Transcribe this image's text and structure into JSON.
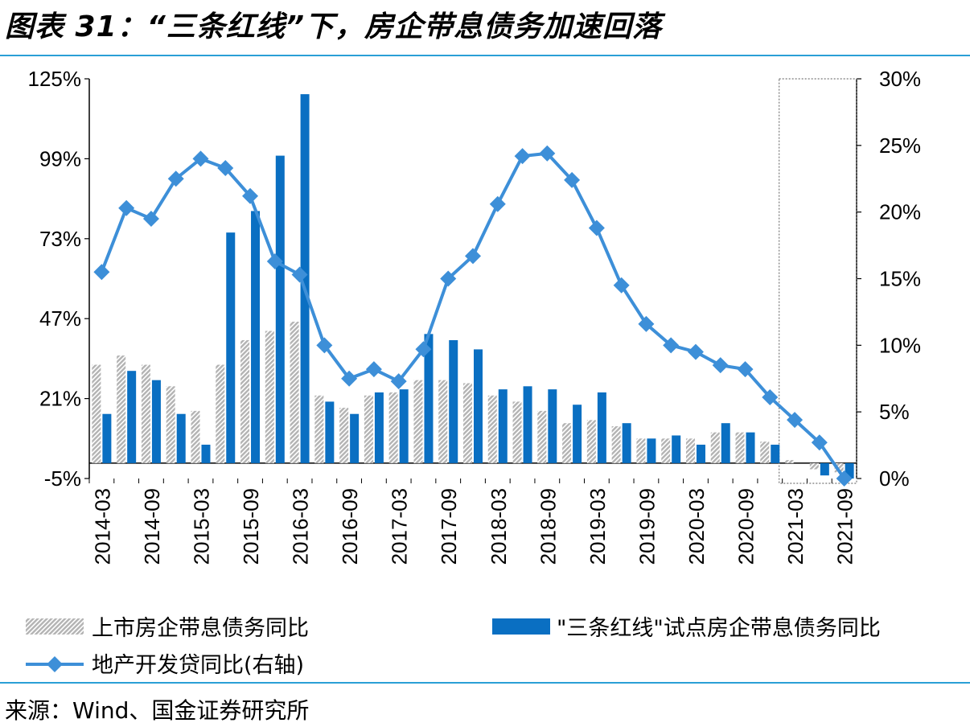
{
  "title": "图表 31：“三条红线”下，房企带息债务加速回落",
  "source": "来源：Wind、国金证券研究所",
  "colors": {
    "accent_rule": "#2a9fd6",
    "bar_pilot": "#0a6fc2",
    "bar_listed": "#b3b3b3",
    "line": "#3d8fd8"
  },
  "chart_data": {
    "type": "bar",
    "left_axis": {
      "ticks": [
        "125%",
        "99%",
        "73%",
        "47%",
        "21%",
        "-5%"
      ],
      "ylim": [
        -5,
        125
      ]
    },
    "right_axis": {
      "ticks": [
        "30%",
        "25%",
        "20%",
        "15%",
        "10%",
        "5%",
        "0%"
      ],
      "ylim": [
        0,
        30
      ]
    },
    "x_tick_labels": [
      "2014-03",
      "2014-09",
      "2015-03",
      "2015-09",
      "2016-03",
      "2016-09",
      "2017-03",
      "2017-09",
      "2018-03",
      "2018-09",
      "2019-03",
      "2019-09",
      "2020-03",
      "2020-09",
      "2021-03",
      "2021-09"
    ],
    "categories": [
      "2014-03",
      "2014-06",
      "2014-09",
      "2014-12",
      "2015-03",
      "2015-06",
      "2015-09",
      "2015-12",
      "2016-03",
      "2016-06",
      "2016-09",
      "2016-12",
      "2017-03",
      "2017-06",
      "2017-09",
      "2017-12",
      "2018-03",
      "2018-06",
      "2018-09",
      "2018-12",
      "2019-03",
      "2019-06",
      "2019-09",
      "2019-12",
      "2020-03",
      "2020-06",
      "2020-09",
      "2020-12",
      "2021-03",
      "2021-06",
      "2021-09"
    ],
    "series": [
      {
        "name": "上市房企带息债务同比",
        "kind": "bar",
        "axis": "left",
        "values": [
          32,
          35,
          32,
          25,
          17,
          32,
          40,
          43,
          46,
          22,
          18,
          22,
          23,
          27,
          27,
          26,
          22,
          20,
          17,
          13,
          14,
          12,
          8,
          8,
          8,
          10,
          10,
          7,
          1,
          -2,
          -3
        ]
      },
      {
        "name": "\"三条红线\"试点房企带息债务同比",
        "kind": "bar",
        "axis": "left",
        "values": [
          16,
          30,
          27,
          16,
          6,
          75,
          82,
          100,
          120,
          20,
          16,
          23,
          24,
          42,
          40,
          37,
          24,
          25,
          24,
          19,
          23,
          13,
          8,
          9,
          6,
          13,
          10,
          6,
          0,
          -4,
          -5
        ]
      },
      {
        "name": "地产开发贷同比(右轴)",
        "kind": "line",
        "axis": "right",
        "values": [
          15.5,
          20.3,
          19.5,
          22.5,
          24,
          23.3,
          21.2,
          16.3,
          15.3,
          10,
          7.5,
          8.2,
          7.3,
          9.7,
          15,
          16.7,
          20.6,
          24.2,
          24.4,
          22.4,
          18.8,
          14.5,
          11.6,
          10,
          9.5,
          8.5,
          8.2,
          6.1,
          4.4,
          2.7,
          0
        ]
      }
    ],
    "highlight_box": {
      "from": "2021-03",
      "to": "2021-09",
      "style": "dotted"
    },
    "legend_position": "bottom"
  }
}
